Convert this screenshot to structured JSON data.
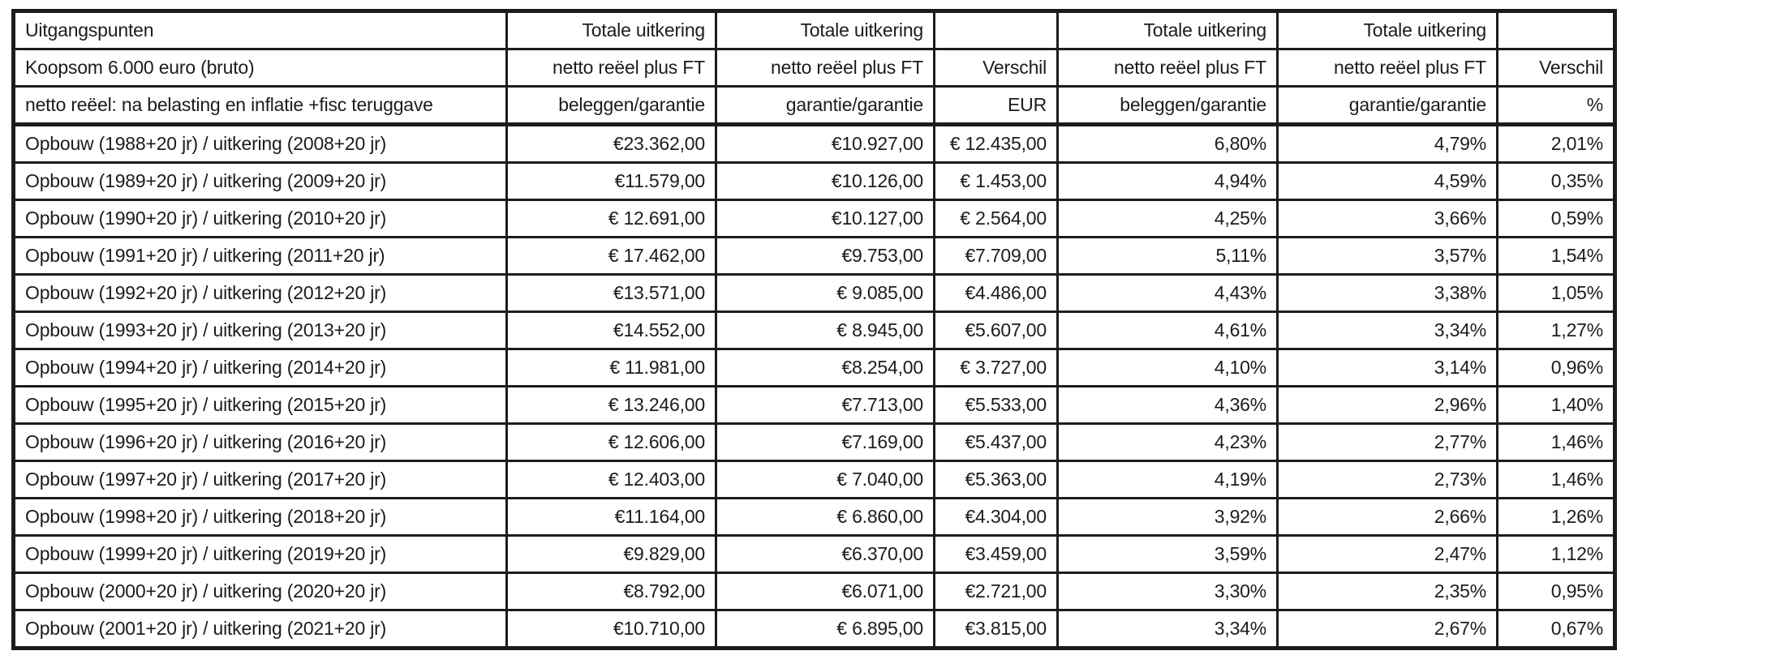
{
  "table": {
    "column_names": [
      "row-label-cell",
      "totale-uitkering-beleggen-eur-cell",
      "totale-uitkering-garantie-eur-cell",
      "verschil-eur-cell",
      "totale-uitkering-beleggen-pct-cell",
      "totale-uitkering-garantie-pct-cell",
      "verschil-pct-cell"
    ],
    "header_rows": [
      [
        "Uitgangspunten",
        "Totale uitkering",
        "Totale uitkering",
        "",
        "Totale uitkering",
        "Totale uitkering",
        ""
      ],
      [
        "Koopsom 6.000 euro (bruto)",
        "netto reëel plus FT",
        "netto reëel plus FT",
        "Verschil",
        "netto reëel plus FT",
        "netto reëel plus FT",
        "Verschil"
      ],
      [
        "netto reëel: na belasting en inflatie +fisc teruggave",
        "beleggen/garantie",
        "garantie/garantie",
        "EUR",
        "beleggen/garantie",
        "garantie/garantie",
        "%"
      ]
    ],
    "rows": [
      [
        "Opbouw (1988+20 jr) / uitkering (2008+20 jr)",
        "€23.362,00",
        "€10.927,00",
        "€ 12.435,00",
        "6,80%",
        "4,79%",
        "2,01%"
      ],
      [
        "Opbouw (1989+20 jr) / uitkering (2009+20 jr)",
        "€11.579,00",
        "€10.126,00",
        "€ 1.453,00",
        "4,94%",
        "4,59%",
        "0,35%"
      ],
      [
        "Opbouw (1990+20 jr) / uitkering (2010+20 jr)",
        "€ 12.691,00",
        "€10.127,00",
        "€ 2.564,00",
        "4,25%",
        "3,66%",
        "0,59%"
      ],
      [
        "Opbouw (1991+20 jr) / uitkering (2011+20 jr)",
        "€ 17.462,00",
        "€9.753,00",
        "€7.709,00",
        "5,11%",
        "3,57%",
        "1,54%"
      ],
      [
        "Opbouw (1992+20 jr) / uitkering (2012+20 jr)",
        "€13.571,00",
        "€ 9.085,00",
        "€4.486,00",
        "4,43%",
        "3,38%",
        "1,05%"
      ],
      [
        "Opbouw (1993+20 jr) / uitkering (2013+20 jr)",
        "€14.552,00",
        "€ 8.945,00",
        "€5.607,00",
        "4,61%",
        "3,34%",
        "1,27%"
      ],
      [
        "Opbouw (1994+20 jr) / uitkering (2014+20 jr)",
        "€ 11.981,00",
        "€8.254,00",
        "€ 3.727,00",
        "4,10%",
        "3,14%",
        "0,96%"
      ],
      [
        "Opbouw (1995+20 jr) / uitkering (2015+20 jr)",
        "€ 13.246,00",
        "€7.713,00",
        "€5.533,00",
        "4,36%",
        "2,96%",
        "1,40%"
      ],
      [
        "Opbouw (1996+20 jr) / uitkering (2016+20 jr)",
        "€ 12.606,00",
        "€7.169,00",
        "€5.437,00",
        "4,23%",
        "2,77%",
        "1,46%"
      ],
      [
        "Opbouw (1997+20 jr) / uitkering (2017+20 jr)",
        "€ 12.403,00",
        "€ 7.040,00",
        "€5.363,00",
        "4,19%",
        "2,73%",
        "1,46%"
      ],
      [
        "Opbouw (1998+20 jr) / uitkering (2018+20 jr)",
        "€11.164,00",
        "€ 6.860,00",
        "€4.304,00",
        "3,92%",
        "2,66%",
        "1,26%"
      ],
      [
        "Opbouw (1999+20 jr) / uitkering (2019+20 jr)",
        "€9.829,00",
        "€6.370,00",
        "€3.459,00",
        "3,59%",
        "2,47%",
        "1,12%"
      ],
      [
        "Opbouw (2000+20 jr) / uitkering (2020+20 jr)",
        "€8.792,00",
        "€6.071,00",
        "€2.721,00",
        "3,30%",
        "2,35%",
        "0,95%"
      ],
      [
        "Opbouw (2001+20 jr) / uitkering (2021+20 jr)",
        "€10.710,00",
        "€ 6.895,00",
        "€3.815,00",
        "3,34%",
        "2,67%",
        "0,67%"
      ]
    ]
  },
  "colors": {
    "border": "#1c1c1c",
    "background": "#ffffff",
    "text": "#1c1c1c"
  }
}
